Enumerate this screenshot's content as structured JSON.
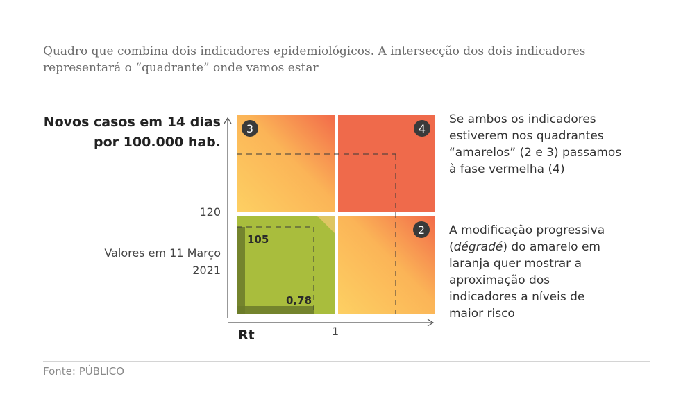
{
  "subtitle": {
    "line1": "Quadro que combina dois indicadores epidemiológicos. A intersecção dos dois indicadores",
    "line2": "representará o “quadrante” onde vamos estar"
  },
  "chart_data": {
    "type": "quadrant",
    "ylabel_line1": "Novos casos em 14 dias",
    "ylabel_line2": "por 100.000 hab.",
    "xlabel": "Rt",
    "y_threshold": 120,
    "x_threshold": 1,
    "y_threshold_label": "120",
    "x_threshold_label": "1",
    "quadrants": [
      {
        "id": 3,
        "label": "3",
        "position": "top-left",
        "color": "amarelo-laranja"
      },
      {
        "id": 4,
        "label": "4",
        "position": "top-right",
        "color": "vermelho"
      },
      {
        "id": 2,
        "label": "2",
        "position": "bottom-right",
        "color": "amarelo-laranja"
      },
      {
        "id": 1,
        "position": "bottom-left",
        "color": "verde"
      }
    ],
    "current": {
      "date_label_line1": "Valores em 11 Março",
      "date_label_line2": "2021",
      "cases_label": "105",
      "rt_label": "0,78"
    },
    "colors": {
      "green": "#a9bd3d",
      "green_dark": "#6b7a2a",
      "red": "#ef6a4b",
      "yellow": "#fdd063",
      "orange": "#f58a47"
    }
  },
  "side_text_1": {
    "line1": "Se ambos os indicadores",
    "line2": "estiverem nos quadrantes",
    "line3": "“amarelos” (2 e 3) passamos",
    "line4": "à fase vermelha (4)"
  },
  "side_text_2": {
    "line1": "A modificação progressiva",
    "line2_pre": "(",
    "line2_italic": "dégradé",
    "line2_post": ") do amarelo em",
    "line3": "laranja quer mostrar a",
    "line4": "aproximação dos",
    "line5": "indicadores a níveis de",
    "line6": "maior risco"
  },
  "source": "Fonte: PÚBLICO"
}
